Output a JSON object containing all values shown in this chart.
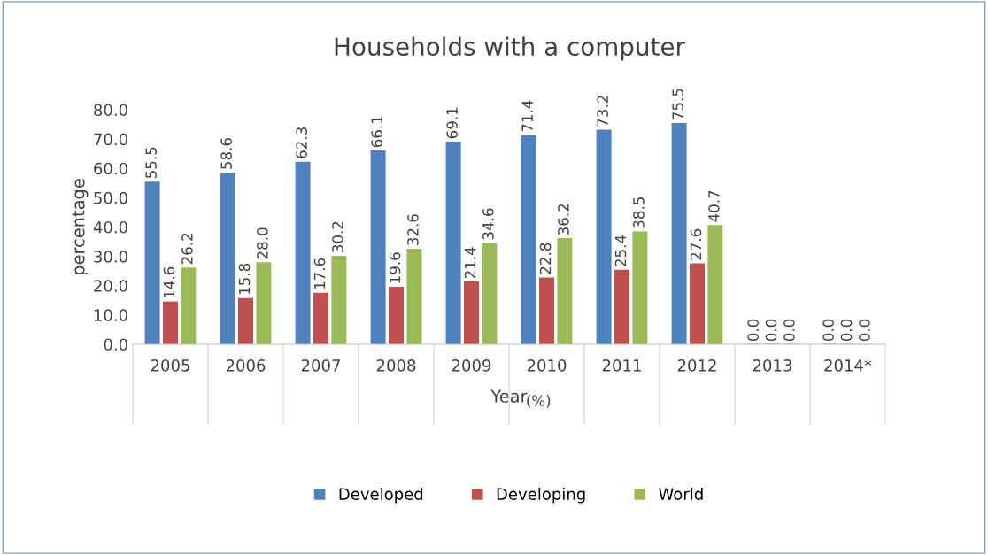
{
  "chart_data": {
    "type": "bar",
    "title": "Households with a computer",
    "xlabel": "Year",
    "ylabel": "percentage",
    "annotations": [
      "(%)"
    ],
    "categories": [
      "2005",
      "2006",
      "2007",
      "2008",
      "2009",
      "2010",
      "2011",
      "2012",
      "2013",
      "2014*"
    ],
    "series": [
      {
        "name": "Developed",
        "color": "#4f81bd",
        "values": [
          55.5,
          58.6,
          62.3,
          66.1,
          69.1,
          71.4,
          73.2,
          75.5,
          0,
          0
        ],
        "value_labels": [
          "55.5",
          "58.6",
          "62.3",
          "66.1",
          "69.1",
          "71.4",
          "73.2",
          "75.5",
          "0.0",
          "0.0"
        ]
      },
      {
        "name": "Developing",
        "color": "#c0504d",
        "values": [
          14.6,
          15.8,
          17.6,
          19.6,
          21.4,
          22.8,
          25.4,
          27.6,
          0,
          0
        ],
        "value_labels": [
          "14.6",
          "15.8",
          "17.6",
          "19.6",
          "21.4",
          "22.8",
          "25.4",
          "27.6",
          "0.0",
          "0.0"
        ]
      },
      {
        "name": "World",
        "color": "#9bbb59",
        "values": [
          26.2,
          28,
          30.2,
          32.6,
          34.6,
          36.2,
          38.5,
          40.7,
          0,
          0
        ],
        "value_labels": [
          "26.2",
          "28.0",
          "30.2",
          "32.6",
          "34.6",
          "36.2",
          "38.5",
          "40.7",
          "0.0",
          "0.0"
        ]
      }
    ],
    "ylim": [
      0,
      80
    ],
    "yticks": [
      {
        "value": 0,
        "label": "0.0"
      },
      {
        "value": 10,
        "label": "10.0"
      },
      {
        "value": 20,
        "label": "20.0"
      },
      {
        "value": 30,
        "label": "30.0"
      },
      {
        "value": 40,
        "label": "40.0"
      },
      {
        "value": 50,
        "label": "50.0"
      },
      {
        "value": 60,
        "label": "60.0"
      },
      {
        "value": 70,
        "label": "70.0"
      },
      {
        "value": 80,
        "label": "80.0"
      }
    ],
    "legend": "bottom",
    "grid": false
  }
}
